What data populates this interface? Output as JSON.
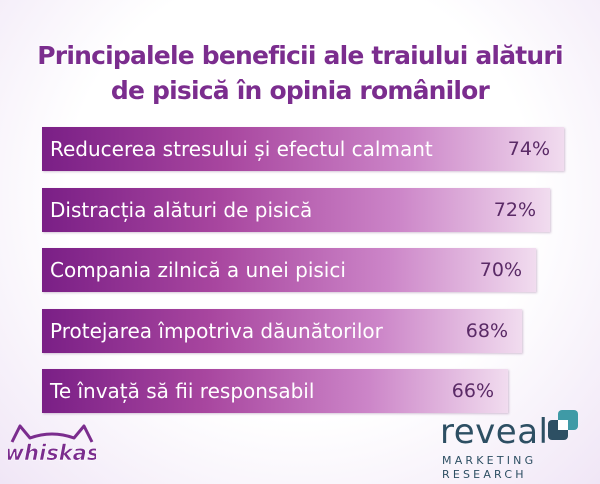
{
  "title": {
    "line1": "Principalele beneficii ale traiului alături",
    "line2": "de pisică în opinia românilor"
  },
  "chart_data": {
    "type": "bar",
    "orientation": "horizontal",
    "categories": [
      "Reducerea stresului și efectul calmant",
      "Distracția alături de pisică",
      "Compania zilnică a unei pisici",
      "Protejarea împotriva dăunătorilor",
      "Te învață să fii responsabil"
    ],
    "values": [
      74,
      72,
      70,
      68,
      66
    ],
    "value_labels": [
      "74%",
      "72%",
      "70%",
      "68%",
      "66%"
    ],
    "unit": "%",
    "grid": false,
    "legend": "none",
    "colors": {
      "bar_start": "#7a1f86",
      "bar_end": "#f1dcef",
      "value_text": "#5a2a66"
    }
  },
  "logos": {
    "left": {
      "icon": "whiskas-logo",
      "text": "whiskas",
      "color": "#7b2d8e"
    },
    "right": {
      "icon": "reveal-logo",
      "word": "reveal",
      "line1": "MARKETING",
      "line2": "RESEARCH",
      "color": "#2d4f63",
      "accent": "#3f9aa6"
    }
  }
}
